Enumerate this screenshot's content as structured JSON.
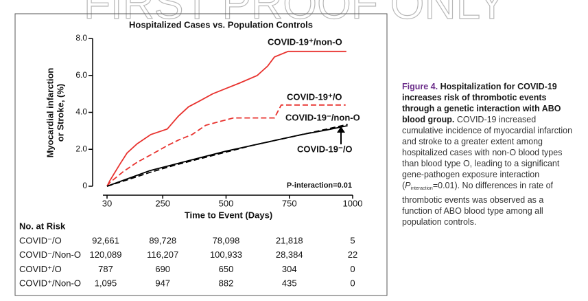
{
  "watermark": "FIRST PROOF ONLY",
  "chart_data": {
    "type": "line",
    "title": "Hospitalized Cases vs. Population Controls",
    "x_label": "Time to Event (Days)",
    "y_label": [
      "Myocardial infarction",
      "or Stroke, (%)"
    ],
    "xlim": [
      30,
      1000
    ],
    "xticks": [
      30,
      250,
      500,
      750,
      1000
    ],
    "ylim": [
      0,
      8
    ],
    "yticks": [
      0,
      {
        "value": 2,
        "label": "2.0"
      },
      {
        "value": 4,
        "label": "4.0"
      },
      {
        "value": 6,
        "label": "6.0"
      },
      {
        "value": 8,
        "label": "8.0"
      }
    ],
    "annotation": "P-interaction=0.01",
    "series": [
      {
        "name": "COVID-19⁺/non-O",
        "color": "#e8322e",
        "dashed": false,
        "x": [
          30,
          41,
          81,
          109,
          149,
          203,
          268,
          312,
          352,
          393,
          447,
          501,
          556,
          623,
          664,
          691,
          745,
          975
        ],
        "values": [
          0,
          0.3,
          1.2,
          1.8,
          2.3,
          2.8,
          3.1,
          3.8,
          4.3,
          4.6,
          5.0,
          5.3,
          5.6,
          6.0,
          6.5,
          7.0,
          7.3,
          7.3
        ]
      },
      {
        "name": "COVID-19⁺/O",
        "color": "#e8322e",
        "dashed": true,
        "x": [
          30,
          41,
          95,
          149,
          203,
          268,
          312,
          366,
          420,
          474,
          529,
          583,
          691,
          718,
          972
        ],
        "values": [
          0,
          0.2,
          0.8,
          1.3,
          1.7,
          2.2,
          2.5,
          2.8,
          3.3,
          3.5,
          3.7,
          3.7,
          3.7,
          4.4,
          4.4
        ]
      },
      {
        "name": "COVID-19⁻/non-O",
        "color": "#000000",
        "dashed": true,
        "x": [
          30,
          100,
          200,
          300,
          400,
          500,
          600,
          700,
          800,
          900,
          980
        ],
        "values": [
          0,
          0.3,
          0.75,
          1.15,
          1.5,
          1.85,
          2.2,
          2.5,
          2.8,
          3.1,
          3.35
        ]
      },
      {
        "name": "COVID-19⁻/O",
        "color": "#000000",
        "dashed": false,
        "x": [
          30,
          100,
          200,
          300,
          400,
          500,
          600,
          700,
          800,
          900,
          980
        ],
        "values": [
          0,
          0.35,
          0.85,
          1.2,
          1.55,
          1.9,
          2.2,
          2.5,
          2.8,
          3.05,
          3.28
        ]
      }
    ]
  },
  "risk_table": {
    "title": "No. at Risk",
    "rows": [
      {
        "label": "COVID⁻/O",
        "values": [
          "92,661",
          "89,728",
          "78,098",
          "21,818",
          "5"
        ]
      },
      {
        "label": "COVID⁻/Non-O",
        "values": [
          "120,089",
          "116,207",
          "100,933",
          "28,384",
          "22"
        ]
      },
      {
        "label": "COVID⁺/O",
        "values": [
          "787",
          "690",
          "650",
          "304",
          "0"
        ]
      },
      {
        "label": "COVID⁺/Non-O",
        "values": [
          "1,095",
          "947",
          "882",
          "435",
          "0"
        ]
      }
    ]
  },
  "caption": {
    "label": "Figure 4.",
    "title": "Hospitalization for COVID-19 increases risk of thrombotic events through a genetic interaction with ABO blood group.",
    "body_before": "COVID-19 increased cumulative incidence of myocardial infarction and stroke to a greater extent among hospitalized cases with non-O blood types than blood type O, leading to a significant gene-pathogen exposure interaction (",
    "p_symbol": "P",
    "p_subscript": "interaction",
    "body_after": "=0.01). No differences in rate of thrombotic events was observed as a function of ABO blood type among all population controls."
  }
}
